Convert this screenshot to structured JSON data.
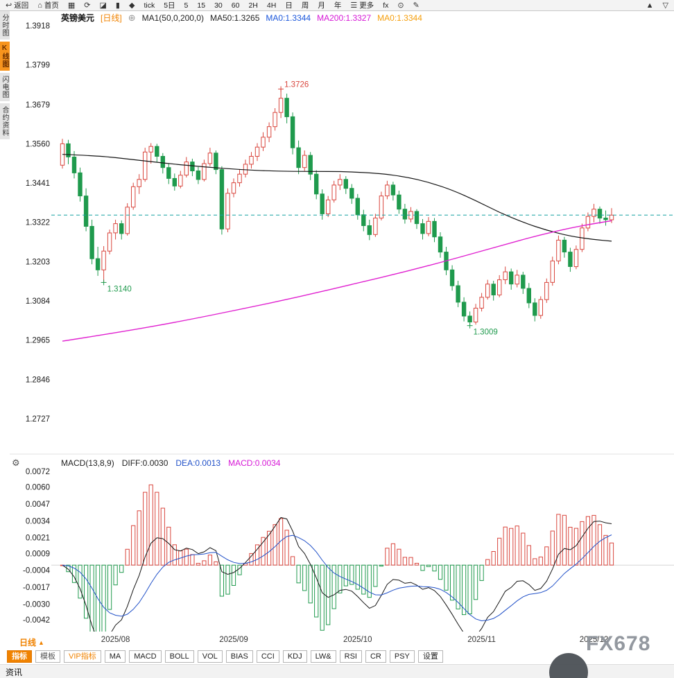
{
  "toolbar": {
    "items": [
      {
        "name": "back",
        "icon": "↩",
        "label": "返回"
      },
      {
        "name": "home",
        "icon": "⌂",
        "label": "首页"
      },
      {
        "name": "kline-style",
        "icon": "▦",
        "label": ""
      },
      {
        "name": "refresh",
        "icon": "⟳",
        "label": ""
      },
      {
        "name": "trend-chart",
        "icon": "◪",
        "label": ""
      },
      {
        "name": "volume-bars",
        "icon": "▮",
        "label": ""
      },
      {
        "name": "markers",
        "icon": "◆",
        "label": ""
      },
      {
        "name": "interval-tick",
        "icon": "",
        "label": "tick"
      },
      {
        "name": "interval-5d",
        "icon": "",
        "label": "5日"
      },
      {
        "name": "interval-5",
        "icon": "",
        "label": "5"
      },
      {
        "name": "interval-15",
        "icon": "",
        "label": "15"
      },
      {
        "name": "interval-30",
        "icon": "",
        "label": "30"
      },
      {
        "name": "interval-60",
        "icon": "",
        "label": "60"
      },
      {
        "name": "interval-2h",
        "icon": "",
        "label": "2H"
      },
      {
        "name": "interval-4h",
        "icon": "",
        "label": "4H"
      },
      {
        "name": "interval-day",
        "icon": "",
        "label": "日"
      },
      {
        "name": "interval-week",
        "icon": "",
        "label": "周"
      },
      {
        "name": "interval-month",
        "icon": "",
        "label": "月"
      },
      {
        "name": "interval-year",
        "icon": "",
        "label": "年"
      },
      {
        "name": "more",
        "icon": "☰",
        "label": "更多"
      },
      {
        "name": "fx-functions",
        "icon": "",
        "label": "fx"
      },
      {
        "name": "zoom-search",
        "icon": "⊙",
        "label": ""
      },
      {
        "name": "draw-pen",
        "icon": "✎",
        "label": ""
      },
      {
        "name": "panel-up",
        "icon": "▲",
        "label": ""
      },
      {
        "name": "panel-down",
        "icon": "▽",
        "label": ""
      }
    ]
  },
  "sidebar": {
    "items": [
      {
        "name": "time-share-chart",
        "label": "分时图",
        "active": false
      },
      {
        "name": "kline-chart",
        "label": "K线图",
        "active": true
      },
      {
        "name": "lightning-chart",
        "label": "闪电图",
        "active": false
      },
      {
        "name": "contract-info",
        "label": "合约资料",
        "active": false
      }
    ]
  },
  "chart_header": {
    "symbol": "英镑美元",
    "period": "[日线]",
    "add_icon": "⊕",
    "ma_settings": "MA1(50,0,200,0)",
    "ma50": "MA50:1.3265",
    "ma0_blue": "MA0:1.3344",
    "ma200": "MA200:1.3327",
    "ma0_orange": "MA0:1.3344"
  },
  "macd_header": {
    "gear_icon": "⚙",
    "title": "MACD(13,8,9)",
    "diff": "DIFF:0.0030",
    "dea": "DEA:0.0013",
    "macd": "MACD:0.0034"
  },
  "bottom": {
    "period_label": "日线",
    "period_arrow": "▲",
    "tabs": [
      {
        "name": "indicators",
        "label": "指标",
        "kind": "primary"
      },
      {
        "name": "templates",
        "label": "模板",
        "kind": "plain"
      },
      {
        "name": "vip-indicators",
        "label": "VIP指标",
        "kind": "vip"
      },
      {
        "name": "ma",
        "label": "MA",
        "kind": "box"
      },
      {
        "name": "macd",
        "label": "MACD",
        "kind": "box"
      },
      {
        "name": "boll",
        "label": "BOLL",
        "kind": "box"
      },
      {
        "name": "vol",
        "label": "VOL",
        "kind": "box"
      },
      {
        "name": "bias",
        "label": "BIAS",
        "kind": "box"
      },
      {
        "name": "cci",
        "label": "CCI",
        "kind": "box"
      },
      {
        "name": "kdj",
        "label": "KDJ",
        "kind": "box"
      },
      {
        "name": "lw",
        "label": "LW&",
        "kind": "box"
      },
      {
        "name": "rsi",
        "label": "RSI",
        "kind": "box"
      },
      {
        "name": "cr",
        "label": "CR",
        "kind": "box"
      },
      {
        "name": "psy",
        "label": "PSY",
        "kind": "box"
      },
      {
        "name": "settings",
        "label": "设置",
        "kind": "box"
      }
    ],
    "news_label": "资讯"
  },
  "watermark": {
    "text": "FX678"
  },
  "chart_data": {
    "type": "candlestick",
    "symbol": "英镑美元 (GBP/USD)",
    "interval": "日线",
    "ylim_main": [
      1.2727,
      1.3918
    ],
    "y_axis_main": [
      "1.3918",
      "1.3799",
      "1.3679",
      "1.3560",
      "1.3441",
      "1.3322",
      "1.3203",
      "1.3084",
      "1.2965",
      "1.2846",
      "1.2727"
    ],
    "ylim_macd": [
      -0.0042,
      0.0072
    ],
    "y_axis_macd": [
      "0.0072",
      "0.0060",
      "0.0047",
      "0.0034",
      "0.0021",
      "0.0009",
      "-0.0004",
      "-0.0017",
      "-0.0030",
      "-0.0042"
    ],
    "x_ticks": [
      {
        "label": "2025/08",
        "index": 9
      },
      {
        "label": "2025/09",
        "index": 29
      },
      {
        "label": "2025/10",
        "index": 50
      },
      {
        "label": "2025/11",
        "index": 71
      },
      {
        "label": "2025/12",
        "index": 90
      }
    ],
    "current_price_line": 1.3344,
    "macd_params": [
      13,
      8,
      9
    ],
    "annotations": [
      {
        "index": 37,
        "price": 1.3726,
        "text": "1.3726",
        "color": "up",
        "pos": "above"
      },
      {
        "index": 7,
        "price": 1.314,
        "text": "1.3140",
        "color": "down",
        "pos": "below"
      },
      {
        "index": 69,
        "price": 1.3009,
        "text": "1.3009",
        "color": "down",
        "pos": "below"
      }
    ],
    "ma_lines": [
      {
        "name": "MA50",
        "color": "#141414",
        "width": 1.2,
        "anchors": [
          [
            0,
            1.3528
          ],
          [
            6,
            1.3524
          ],
          [
            12,
            1.3512
          ],
          [
            18,
            1.35
          ],
          [
            24,
            1.349
          ],
          [
            30,
            1.3482
          ],
          [
            36,
            1.3477
          ],
          [
            42,
            1.3476
          ],
          [
            48,
            1.3476
          ],
          [
            54,
            1.347
          ],
          [
            58,
            1.346
          ],
          [
            62,
            1.3444
          ],
          [
            66,
            1.342
          ],
          [
            70,
            1.3388
          ],
          [
            74,
            1.3352
          ],
          [
            78,
            1.3322
          ],
          [
            82,
            1.3298
          ],
          [
            86,
            1.328
          ],
          [
            90,
            1.327
          ],
          [
            93,
            1.3265
          ]
        ]
      },
      {
        "name": "MA200",
        "color": "#e020d0",
        "width": 1.4,
        "anchors": [
          [
            0,
            1.2962
          ],
          [
            10,
            1.299
          ],
          [
            20,
            1.3022
          ],
          [
            30,
            1.3058
          ],
          [
            40,
            1.3096
          ],
          [
            50,
            1.3138
          ],
          [
            58,
            1.3172
          ],
          [
            66,
            1.321
          ],
          [
            74,
            1.325
          ],
          [
            80,
            1.328
          ],
          [
            86,
            1.3305
          ],
          [
            90,
            1.3318
          ],
          [
            93,
            1.3327
          ]
        ]
      }
    ],
    "colors": {
      "up": "#d9453c",
      "down": "#1f9a4d",
      "price_line": "#17a2a2",
      "diff_line": "#141414",
      "dea_line": "#2050c8",
      "accent_orange": "#f08200"
    },
    "candles": [
      [
        1.3495,
        1.3575,
        1.3485,
        1.356
      ],
      [
        1.356,
        1.3572,
        1.3498,
        1.352
      ],
      [
        1.352,
        1.3538,
        1.3455,
        1.3472
      ],
      [
        1.3472,
        1.3488,
        1.3385,
        1.3402
      ],
      [
        1.3402,
        1.3425,
        1.3295,
        1.331
      ],
      [
        1.331,
        1.333,
        1.3195,
        1.3212
      ],
      [
        1.3212,
        1.3248,
        1.316,
        1.3178
      ],
      [
        1.3178,
        1.325,
        1.314,
        1.3235
      ],
      [
        1.3235,
        1.33,
        1.3225,
        1.329
      ],
      [
        1.329,
        1.333,
        1.327,
        1.3318
      ],
      [
        1.3318,
        1.3328,
        1.327,
        1.3288
      ],
      [
        1.3288,
        1.338,
        1.3282,
        1.3368
      ],
      [
        1.3368,
        1.3442,
        1.336,
        1.343
      ],
      [
        1.343,
        1.3468,
        1.3408,
        1.3452
      ],
      [
        1.3452,
        1.3548,
        1.3445,
        1.3535
      ],
      [
        1.3535,
        1.3562,
        1.35,
        1.3552
      ],
      [
        1.3552,
        1.356,
        1.3505,
        1.3522
      ],
      [
        1.3522,
        1.3532,
        1.347,
        1.3488
      ],
      [
        1.3488,
        1.35,
        1.3438,
        1.3455
      ],
      [
        1.3455,
        1.347,
        1.3418,
        1.3432
      ],
      [
        1.3432,
        1.3478,
        1.3425,
        1.3465
      ],
      [
        1.3465,
        1.352,
        1.3458,
        1.3505
      ],
      [
        1.3505,
        1.3515,
        1.3462,
        1.3478
      ],
      [
        1.3478,
        1.349,
        1.3438,
        1.3452
      ],
      [
        1.3452,
        1.3512,
        1.3446,
        1.35
      ],
      [
        1.35,
        1.3548,
        1.3492,
        1.3532
      ],
      [
        1.3532,
        1.354,
        1.3468,
        1.3482
      ],
      [
        1.3482,
        1.3492,
        1.3285,
        1.3302
      ],
      [
        1.3302,
        1.3425,
        1.3292,
        1.341
      ],
      [
        1.341,
        1.3455,
        1.3398,
        1.3442
      ],
      [
        1.3442,
        1.3482,
        1.343,
        1.3468
      ],
      [
        1.3468,
        1.3512,
        1.3458,
        1.3498
      ],
      [
        1.3498,
        1.3535,
        1.3485,
        1.3522
      ],
      [
        1.3522,
        1.3562,
        1.3508,
        1.355
      ],
      [
        1.355,
        1.3595,
        1.3538,
        1.358
      ],
      [
        1.358,
        1.3625,
        1.3565,
        1.3612
      ],
      [
        1.3612,
        1.3668,
        1.36,
        1.3655
      ],
      [
        1.3655,
        1.3726,
        1.3638,
        1.3698
      ],
      [
        1.3698,
        1.3712,
        1.3622,
        1.3642
      ],
      [
        1.3642,
        1.3655,
        1.3528,
        1.3548
      ],
      [
        1.3548,
        1.357,
        1.3468,
        1.3488
      ],
      [
        1.3488,
        1.354,
        1.3478,
        1.3525
      ],
      [
        1.3525,
        1.3535,
        1.345,
        1.3468
      ],
      [
        1.3468,
        1.348,
        1.3392,
        1.3408
      ],
      [
        1.3408,
        1.3422,
        1.333,
        1.3348
      ],
      [
        1.3348,
        1.3402,
        1.3338,
        1.339
      ],
      [
        1.339,
        1.3448,
        1.3382,
        1.3435
      ],
      [
        1.3435,
        1.3468,
        1.342,
        1.3452
      ],
      [
        1.3452,
        1.3462,
        1.3408,
        1.3425
      ],
      [
        1.3425,
        1.3438,
        1.3378,
        1.3395
      ],
      [
        1.3395,
        1.3408,
        1.333,
        1.3345
      ],
      [
        1.3345,
        1.336,
        1.3295,
        1.3312
      ],
      [
        1.3312,
        1.333,
        1.3268,
        1.3285
      ],
      [
        1.3285,
        1.3348,
        1.3278,
        1.3335
      ],
      [
        1.3335,
        1.3415,
        1.3328,
        1.3402
      ],
      [
        1.3402,
        1.3448,
        1.3392,
        1.3435
      ],
      [
        1.3435,
        1.3445,
        1.3388,
        1.3405
      ],
      [
        1.3405,
        1.3418,
        1.3348,
        1.3362
      ],
      [
        1.3362,
        1.3378,
        1.3318,
        1.3332
      ],
      [
        1.3332,
        1.3368,
        1.3322,
        1.3355
      ],
      [
        1.3355,
        1.3362,
        1.3302,
        1.3318
      ],
      [
        1.3318,
        1.3332,
        1.327,
        1.3288
      ],
      [
        1.3288,
        1.3338,
        1.328,
        1.3325
      ],
      [
        1.3325,
        1.3335,
        1.3262,
        1.3278
      ],
      [
        1.3278,
        1.3292,
        1.3215,
        1.3232
      ],
      [
        1.3232,
        1.3248,
        1.3162,
        1.3178
      ],
      [
        1.3178,
        1.3192,
        1.3115,
        1.313
      ],
      [
        1.313,
        1.3145,
        1.3065,
        1.308
      ],
      [
        1.308,
        1.3095,
        1.3022,
        1.3038
      ],
      [
        1.3038,
        1.3052,
        1.3009,
        1.302
      ],
      [
        1.302,
        1.3075,
        1.3012,
        1.3062
      ],
      [
        1.3062,
        1.3108,
        1.3052,
        1.3095
      ],
      [
        1.3095,
        1.3148,
        1.3088,
        1.3135
      ],
      [
        1.3135,
        1.3145,
        1.3085,
        1.3102
      ],
      [
        1.3102,
        1.3162,
        1.3095,
        1.3148
      ],
      [
        1.3148,
        1.3188,
        1.3135,
        1.3172
      ],
      [
        1.3172,
        1.3182,
        1.3118,
        1.3135
      ],
      [
        1.3135,
        1.3178,
        1.3125,
        1.3162
      ],
      [
        1.3162,
        1.3172,
        1.3105,
        1.3122
      ],
      [
        1.3122,
        1.3138,
        1.3062,
        1.3078
      ],
      [
        1.3078,
        1.3092,
        1.3022,
        1.304
      ],
      [
        1.304,
        1.3098,
        1.303,
        1.3088
      ],
      [
        1.3088,
        1.3152,
        1.3078,
        1.314
      ],
      [
        1.314,
        1.3218,
        1.313,
        1.3205
      ],
      [
        1.3205,
        1.3282,
        1.3195,
        1.3268
      ],
      [
        1.3268,
        1.3278,
        1.3215,
        1.3232
      ],
      [
        1.3232,
        1.3245,
        1.3172,
        1.3188
      ],
      [
        1.3188,
        1.3252,
        1.318,
        1.324
      ],
      [
        1.324,
        1.3318,
        1.3232,
        1.3305
      ],
      [
        1.3305,
        1.3352,
        1.3295,
        1.334
      ],
      [
        1.334,
        1.3378,
        1.3322,
        1.3362
      ],
      [
        1.3362,
        1.337,
        1.3318,
        1.3335
      ],
      [
        1.3335,
        1.3358,
        1.3312,
        1.333
      ],
      [
        1.333,
        1.3365,
        1.332,
        1.3344
      ]
    ]
  }
}
